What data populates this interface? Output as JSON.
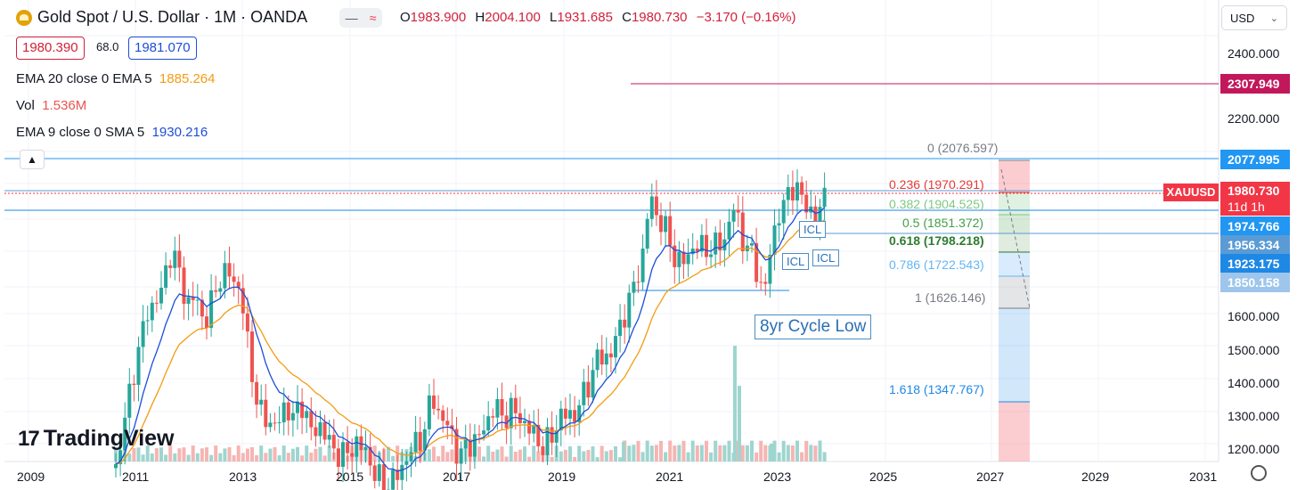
{
  "header": {
    "title": "Gold Spot / U.S. Dollar · 1M · OANDA",
    "toggle_minus": "—",
    "toggle_wave": "≈",
    "ohlc": [
      {
        "key": "O",
        "value": "1983.900"
      },
      {
        "key": "H",
        "value": "2004.100"
      },
      {
        "key": "L",
        "value": "1931.685"
      },
      {
        "key": "C",
        "value": "1980.730"
      }
    ],
    "change": "−3.170 (−0.16%)",
    "bid": "1980.390",
    "spread": "68.0",
    "ask": "1981.070"
  },
  "indicators": [
    {
      "label": "EMA 20 close 0 EMA 5",
      "value": "1885.264",
      "color": "#f39c12"
    },
    {
      "label": "Vol",
      "value": "1.536M",
      "color": "#e8554e"
    },
    {
      "label": "EMA 9 close 0 SMA 5",
      "value": "1930.216",
      "color": "#1d4ed8"
    }
  ],
  "collapse_icon": "▲",
  "currency": {
    "label": "USD",
    "chevron": "⌄"
  },
  "y_axis": [
    "2400.000",
    "2200.000",
    "1600.000",
    "1500.000",
    "1400.000",
    "1300.000",
    "1200.000"
  ],
  "x_axis": [
    "2009",
    "2011",
    "2013",
    "2015",
    "2017",
    "2019",
    "2021",
    "2023",
    "2025",
    "2027",
    "2029",
    "2031"
  ],
  "price_labels": [
    {
      "text": "2307.949",
      "bg": "#c2185b"
    },
    {
      "text": "2077.995",
      "bg": "#2196f3"
    },
    {
      "text": "1974.766",
      "bg": "#2196f3"
    },
    {
      "text": "1956.334",
      "bg": "#5b9bd5"
    },
    {
      "text": "1923.175",
      "bg": "#1e88e5"
    },
    {
      "text": "1850.158",
      "bg": "#9ec6ec"
    }
  ],
  "last_price": {
    "symbol": "XAUUSD",
    "price": "1980.730",
    "countdown": "11d 1h",
    "bg": "#f23645"
  },
  "fib_levels": [
    {
      "text": "0 (2076.597)",
      "color": "#787b86"
    },
    {
      "text": "0.236 (1970.291)",
      "color": "#e53935"
    },
    {
      "text": "0.382 (1904.525)",
      "color": "#81c784"
    },
    {
      "text": "0.5 (1851.372)",
      "color": "#43a047"
    },
    {
      "text": "0.618 (1798.218)",
      "color": "#2e7d32"
    },
    {
      "text": "0.786 (1722.543)",
      "color": "#64b5f6"
    },
    {
      "text": "1 (1626.146)",
      "color": "#787b86"
    },
    {
      "text": "1.618 (1347.767)",
      "color": "#1e88e5"
    }
  ],
  "annotations": {
    "icl_1": "ICL",
    "icl_2": "ICL",
    "icl_3": "ICL",
    "cycle_low": "8yr Cycle Low"
  },
  "watermark": {
    "mark": "17",
    "text": "TradingView"
  },
  "settings_icon": "gear-icon"
}
